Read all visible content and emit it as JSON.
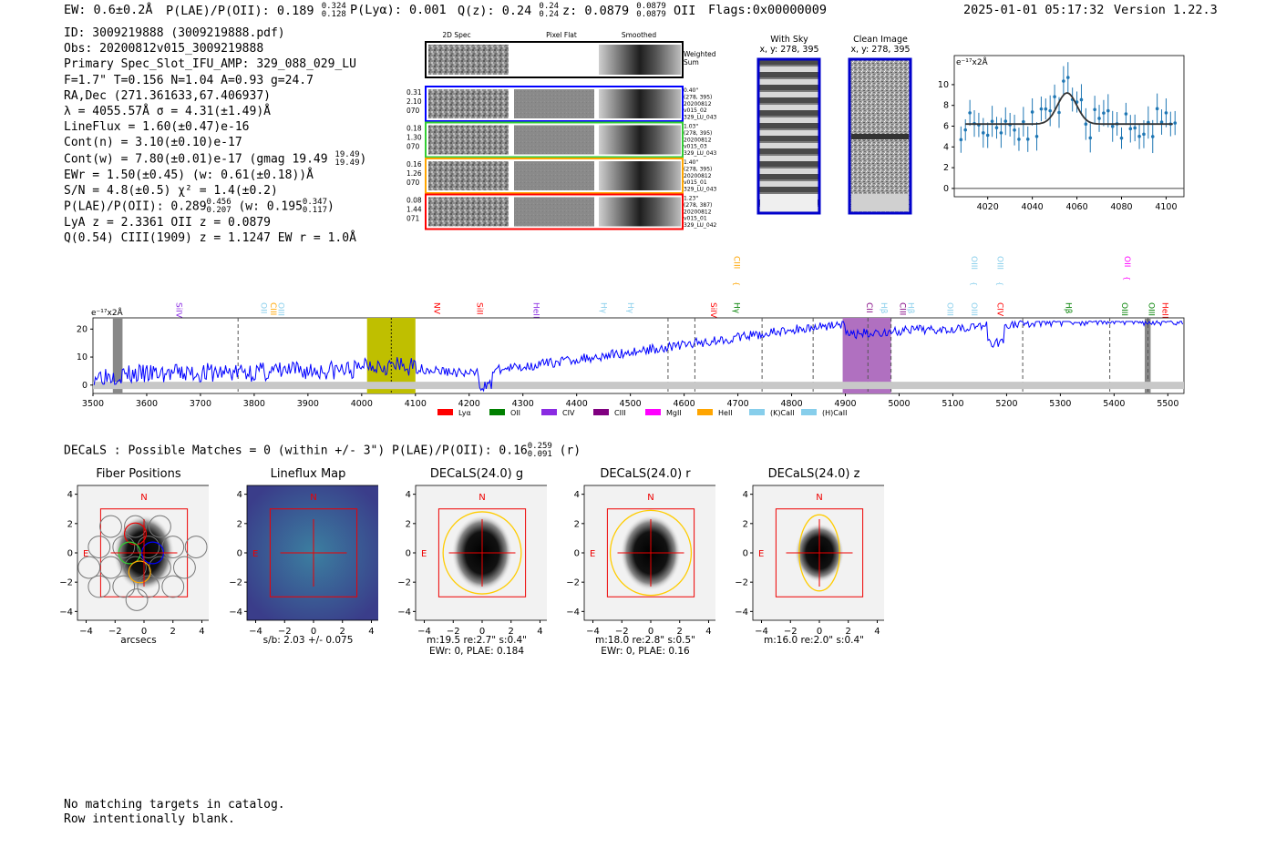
{
  "header": {
    "ew": "EW: 0.6±0.2Å",
    "plae_label": "P(LAE)/P(OII): 0.189",
    "plae_hi": "0.324",
    "plae_lo": "0.128",
    "plya": "P(Lyα): 0.001",
    "qz_label": "Q(z): 0.24",
    "qz_hi": "0.24",
    "qz_lo": "0.24",
    "z_label": "z: 0.0879",
    "z_hi": "0.0879",
    "z_lo": "0.0879",
    "z_line": "OII",
    "flags": "Flags:0x00000009",
    "datetime": "2025-01-01 05:17:32",
    "version": "Version 1.22.3"
  },
  "info": {
    "id": "ID: 3009219888 (3009219888.pdf)",
    "obs": "Obs: 20200812v015_3009219888",
    "primary": "Primary Spec_Slot_IFU_AMP: 329_088_029_LU",
    "fwhm": "F=1.7\"  T=0.156  N=1.04  A=0.93  g=24.7",
    "radec": "RA,Dec (271.361633,67.406937)",
    "lambda": "λ = 4055.57Å   σ = 4.31(±1.49)Å",
    "lineflux": "LineFlux = 1.60(±0.47)e-16",
    "contn": "Cont(n) = 3.10(±0.10)e-17",
    "contw": "Cont(w) = 7.80(±0.01)e-17 (gmag 19.49",
    "contw_hi": "19.49",
    "contw_lo": "19.49",
    "contw_end": ")",
    "ewr": "EWr = 1.50(±0.45) (w: 0.61(±0.18))Å",
    "sn": "S/N = 4.8(±0.5)   χ² = 1.4(±0.2)",
    "plae": "P(LAE)/P(OII): 0.289",
    "plae_hi": "0.456",
    "plae_lo": "0.207",
    "plae_w": "(w: 0.195",
    "plae_w_hi": "0.347",
    "plae_w_lo": "0.117",
    "plae_end": ")",
    "lya": "LyA z = 2.3361  OII z = 0.0879",
    "ciii": "Q(0.54) CIII(1909) z = 1.1247  EW r = 1.0Å"
  },
  "cutouts": {
    "headers": [
      "2D Spec",
      "Pixel Flat",
      "Smoothed"
    ],
    "weighted_label_1": "Weighted",
    "weighted_label_2": "Sum",
    "rows": [
      {
        "left": [
          "0.31",
          "2.10",
          "070"
        ],
        "right": [
          "0.40\"",
          "(278, 395)",
          "20200812",
          "v015_02",
          "329_LU_043"
        ],
        "color": "#0000ff"
      },
      {
        "left": [
          "0.18",
          "1.30",
          "070"
        ],
        "right": [
          "1.03\"",
          "(278, 395)",
          "20200812",
          "v015_03",
          "329_LU_043"
        ],
        "color": "#33cc33"
      },
      {
        "left": [
          "0.16",
          "1.26",
          "070"
        ],
        "right": [
          "1.40\"",
          "(278, 395)",
          "20200812",
          "v015_01",
          "329_LU_043"
        ],
        "color": "#ffa500"
      },
      {
        "left": [
          "0.08",
          "1.44",
          "071"
        ],
        "right": [
          "1.23\"",
          "(278, 387)",
          "20200812",
          "v015_01",
          "329_LU_042"
        ],
        "color": "#ff0000"
      }
    ]
  },
  "sky": {
    "with_sky_title": "With Sky",
    "with_sky_xy": "x, y: 278, 395",
    "clean_title": "Clean Image",
    "clean_xy": "x, y: 278, 395"
  },
  "zoom_plot": {
    "unit": "e⁻¹⁷x2Å",
    "yticks": [
      "0",
      "2",
      "4",
      "6",
      "8",
      "10"
    ],
    "xticks": [
      "4020",
      "4040",
      "4060",
      "4080",
      "4100"
    ]
  },
  "spectrum": {
    "unit": "e⁻¹⁷x2Å",
    "yticks": [
      "0",
      "10",
      "20"
    ],
    "xticks": [
      "3500",
      "3600",
      "3700",
      "3800",
      "3900",
      "4000",
      "4100",
      "4200",
      "4300",
      "4400",
      "4500",
      "4600",
      "4700",
      "4800",
      "4900",
      "5000",
      "5100",
      "5200",
      "5300",
      "5400",
      "5500"
    ],
    "line_labels": [
      {
        "text": "SiIV",
        "w": 3650,
        "color": "#8a2be2",
        "level": 0
      },
      {
        "text": "OII",
        "w": 3808,
        "color": "#87ceeb",
        "level": 0
      },
      {
        "text": "CIII",
        "w": 3826,
        "color": "#ffa500",
        "level": 0
      },
      {
        "text": "OIII",
        "w": 3840,
        "color": "#87ceeb",
        "level": 0
      },
      {
        "text": "NV",
        "w": 4130,
        "color": "#ff0000",
        "level": 0
      },
      {
        "text": "SiII",
        "w": 4210,
        "color": "#ff0000",
        "level": 0
      },
      {
        "text": "HeII",
        "w": 4315,
        "color": "#8a2be2",
        "level": 0
      },
      {
        "text": "Hγ",
        "w": 4440,
        "color": "#87ceeb",
        "level": 0
      },
      {
        "text": "Hγ",
        "w": 4490,
        "color": "#87ceeb",
        "level": 0
      },
      {
        "text": "SiIV",
        "w": 4645,
        "color": "#ff0000",
        "level": 0
      },
      {
        "text": "CIII",
        "w": 4688,
        "color": "#ffa500",
        "level": 1
      },
      {
        "text": "Hγ",
        "w": 4688,
        "color": "#008000",
        "level": 0
      },
      {
        "text": "CII",
        "w": 4935,
        "color": "#800080",
        "level": 0
      },
      {
        "text": "Hβ",
        "w": 4962,
        "color": "#87ceeb",
        "level": 0
      },
      {
        "text": "CIII",
        "w": 4997,
        "color": "#800080",
        "level": 0
      },
      {
        "text": "Hβ",
        "w": 5012,
        "color": "#87ceeb",
        "level": 0
      },
      {
        "text": "OIII",
        "w": 5085,
        "color": "#87ceeb",
        "level": 0
      },
      {
        "text": "OIII",
        "w": 5130,
        "color": "#87ceeb",
        "level": 1
      },
      {
        "text": "OIII",
        "w": 5130,
        "color": "#87ceeb",
        "level": 0
      },
      {
        "text": "OIII",
        "w": 5178,
        "color": "#87ceeb",
        "level": 1
      },
      {
        "text": "CIV",
        "w": 5178,
        "color": "#ff0000",
        "level": 0
      },
      {
        "text": "Hβ",
        "w": 5305,
        "color": "#008000",
        "level": 0
      },
      {
        "text": "OIII",
        "w": 5410,
        "color": "#008000",
        "level": 0
      },
      {
        "text": "OII",
        "w": 5415,
        "color": "#ff00ff",
        "level": 1
      },
      {
        "text": "OIII",
        "w": 5460,
        "color": "#008000",
        "level": 0
      },
      {
        "text": "HeII",
        "w": 5485,
        "color": "#ff0000",
        "level": 0
      }
    ],
    "legend": [
      {
        "label": "Lyα",
        "color": "#ff0000"
      },
      {
        "label": "OII",
        "color": "#008000"
      },
      {
        "label": "CIV",
        "color": "#8a2be2"
      },
      {
        "label": "CIII",
        "color": "#800080"
      },
      {
        "label": "MgII",
        "color": "#ff00ff"
      },
      {
        "label": "HeII",
        "color": "#ffa500"
      },
      {
        "label": "(K)CaII",
        "color": "#87ceeb"
      },
      {
        "label": "(H)CaII",
        "color": "#87ceeb"
      }
    ]
  },
  "decals": {
    "title": "DECaLS : Possible Matches = 0 (within +/- 3\")  P(LAE)/P(OII): 0.16",
    "title_hi": "0.259",
    "title_lo": "0.091",
    "title_end": "(r)",
    "panels": [
      {
        "title": "Fiber Positions",
        "caption1": "arcsecs",
        "caption2": ""
      },
      {
        "title": "Lineflux Map",
        "caption1": "s/b: 2.03 +/- 0.075",
        "caption2": ""
      },
      {
        "title": "DECaLS(24.0) g",
        "caption1": "m:19.5  re:2.7\"  s:0.4\"",
        "caption2": "EWr: 0, PLAE: 0.184"
      },
      {
        "title": "DECaLS(24.0) r",
        "caption1": "m:18.0  re:2.8\"  s:0.5\"",
        "caption2": "EWr: 0, PLAE: 0.16"
      },
      {
        "title": "DECaLS(24.0) z",
        "caption1": "m:16.0  re:2.0\"  s:0.4\"",
        "caption2": ""
      }
    ],
    "ticks": [
      "4",
      "2",
      "0",
      "−2",
      "−4"
    ],
    "xticks": [
      "−4",
      "−2",
      "0",
      "2",
      "4"
    ],
    "north": "N",
    "east": "E"
  },
  "footer": {
    "line1": "No matching targets in catalog.",
    "line2": "Row intentionally blank."
  }
}
